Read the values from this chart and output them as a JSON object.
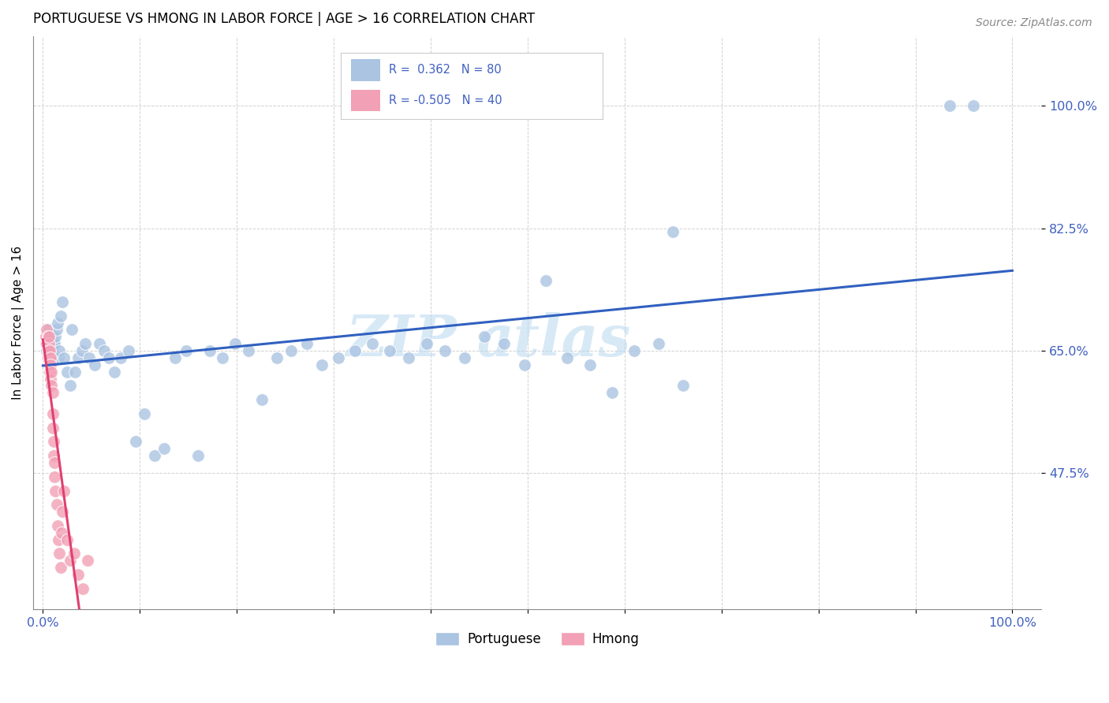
{
  "title": "PORTUGUESE VS HMONG IN LABOR FORCE | AGE > 16 CORRELATION CHART",
  "source": "Source: ZipAtlas.com",
  "ylabel": "In Labor Force | Age > 16",
  "portuguese_R": 0.362,
  "portuguese_N": 80,
  "hmong_R": -0.505,
  "hmong_N": 40,
  "portuguese_color": "#aac4e2",
  "hmong_color": "#f2a0b5",
  "portuguese_line_color": "#3060c0",
  "hmong_line_color": "#e04070",
  "watermark_text": "ZIP",
  "watermark_text2": "atlas",
  "ytick_vals": [
    0.475,
    0.65,
    0.825,
    1.0
  ],
  "ytick_labels": [
    "47.5%",
    "65.0%",
    "82.5%",
    "100.0%"
  ],
  "xtick_vals": [
    0.0,
    0.1,
    0.2,
    0.3,
    0.4,
    0.5,
    0.6,
    0.7,
    0.8,
    0.9,
    1.0
  ],
  "xtick_labels": [
    "0.0%",
    "",
    "",
    "",
    "",
    "",
    "",
    "",
    "",
    "",
    "100.0%"
  ],
  "xlim": [
    -0.01,
    1.03
  ],
  "ylim": [
    0.28,
    1.1
  ],
  "port_x": [
    0.003,
    0.004,
    0.005,
    0.005,
    0.006,
    0.006,
    0.007,
    0.007,
    0.007,
    0.008,
    0.008,
    0.008,
    0.009,
    0.009,
    0.01,
    0.01,
    0.01,
    0.011,
    0.011,
    0.012,
    0.013,
    0.014,
    0.015,
    0.016,
    0.017,
    0.018,
    0.02,
    0.022,
    0.025,
    0.028,
    0.03,
    0.033,
    0.036,
    0.04,
    0.044,
    0.048,
    0.053,
    0.058,
    0.063,
    0.068,
    0.074,
    0.08,
    0.088,
    0.096,
    0.105,
    0.115,
    0.125,
    0.136,
    0.148,
    0.16,
    0.172,
    0.185,
    0.198,
    0.212,
    0.226,
    0.241,
    0.256,
    0.272,
    0.288,
    0.305,
    0.322,
    0.34,
    0.358,
    0.377,
    0.396,
    0.415,
    0.435,
    0.455,
    0.476,
    0.497,
    0.519,
    0.541,
    0.564,
    0.587,
    0.61,
    0.635,
    0.66,
    0.935,
    0.96,
    0.65
  ],
  "port_y": [
    0.66,
    0.65,
    0.67,
    0.68,
    0.655,
    0.665,
    0.65,
    0.66,
    0.68,
    0.65,
    0.665,
    0.675,
    0.66,
    0.65,
    0.655,
    0.665,
    0.67,
    0.66,
    0.64,
    0.66,
    0.67,
    0.68,
    0.69,
    0.64,
    0.65,
    0.7,
    0.72,
    0.64,
    0.62,
    0.6,
    0.68,
    0.62,
    0.64,
    0.65,
    0.66,
    0.64,
    0.63,
    0.66,
    0.65,
    0.64,
    0.62,
    0.64,
    0.65,
    0.52,
    0.56,
    0.5,
    0.51,
    0.64,
    0.65,
    0.5,
    0.65,
    0.64,
    0.66,
    0.65,
    0.58,
    0.64,
    0.65,
    0.66,
    0.63,
    0.64,
    0.65,
    0.66,
    0.65,
    0.64,
    0.66,
    0.65,
    0.64,
    0.67,
    0.66,
    0.63,
    0.75,
    0.64,
    0.63,
    0.59,
    0.65,
    0.66,
    0.6,
    1.0,
    1.0,
    0.82
  ],
  "hmong_x": [
    0.003,
    0.004,
    0.004,
    0.005,
    0.005,
    0.005,
    0.006,
    0.006,
    0.006,
    0.007,
    0.007,
    0.007,
    0.007,
    0.008,
    0.008,
    0.008,
    0.009,
    0.009,
    0.01,
    0.01,
    0.01,
    0.011,
    0.011,
    0.012,
    0.012,
    0.013,
    0.014,
    0.015,
    0.016,
    0.017,
    0.018,
    0.019,
    0.02,
    0.022,
    0.025,
    0.028,
    0.032,
    0.036,
    0.041,
    0.046
  ],
  "hmong_y": [
    0.67,
    0.66,
    0.68,
    0.65,
    0.67,
    0.64,
    0.66,
    0.65,
    0.67,
    0.64,
    0.63,
    0.65,
    0.62,
    0.64,
    0.61,
    0.63,
    0.6,
    0.62,
    0.59,
    0.56,
    0.54,
    0.52,
    0.5,
    0.49,
    0.47,
    0.45,
    0.43,
    0.4,
    0.38,
    0.36,
    0.34,
    0.39,
    0.42,
    0.45,
    0.38,
    0.35,
    0.36,
    0.33,
    0.31,
    0.35
  ]
}
